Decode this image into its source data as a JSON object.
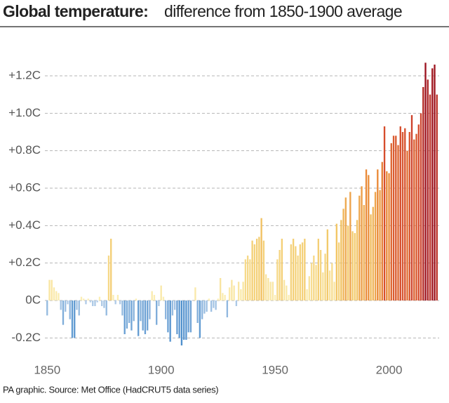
{
  "chart_data": {
    "type": "bar",
    "title": "Global temperature:",
    "subtitle": "difference from 1850-1900 average",
    "source": "PA graphic. Source: Met Office (HadCRUT5 data series)",
    "x": [
      1850,
      1851,
      1852,
      1853,
      1854,
      1855,
      1856,
      1857,
      1858,
      1859,
      1860,
      1861,
      1862,
      1863,
      1864,
      1865,
      1866,
      1867,
      1868,
      1869,
      1870,
      1871,
      1872,
      1873,
      1874,
      1875,
      1876,
      1877,
      1878,
      1879,
      1880,
      1881,
      1882,
      1883,
      1884,
      1885,
      1886,
      1887,
      1888,
      1889,
      1890,
      1891,
      1892,
      1893,
      1894,
      1895,
      1896,
      1897,
      1898,
      1899,
      1900,
      1901,
      1902,
      1903,
      1904,
      1905,
      1906,
      1907,
      1908,
      1909,
      1910,
      1911,
      1912,
      1913,
      1914,
      1915,
      1916,
      1917,
      1918,
      1919,
      1920,
      1921,
      1922,
      1923,
      1924,
      1925,
      1926,
      1927,
      1928,
      1929,
      1930,
      1931,
      1932,
      1933,
      1934,
      1935,
      1936,
      1937,
      1938,
      1939,
      1940,
      1941,
      1942,
      1943,
      1944,
      1945,
      1946,
      1947,
      1948,
      1949,
      1950,
      1951,
      1952,
      1953,
      1954,
      1955,
      1956,
      1957,
      1958,
      1959,
      1960,
      1961,
      1962,
      1963,
      1964,
      1965,
      1966,
      1967,
      1968,
      1969,
      1970,
      1971,
      1972,
      1973,
      1974,
      1975,
      1976,
      1977,
      1978,
      1979,
      1980,
      1981,
      1982,
      1983,
      1984,
      1985,
      1986,
      1987,
      1988,
      1989,
      1990,
      1991,
      1992,
      1993,
      1994,
      1995,
      1996,
      1997,
      1998,
      1999,
      2000,
      2001,
      2002,
      2003,
      2004,
      2005,
      2006,
      2007,
      2008,
      2009,
      2010,
      2011,
      2012,
      2013,
      2014,
      2015,
      2016,
      2017,
      2018,
      2019,
      2020,
      2021
    ],
    "values": [
      -0.08,
      0.11,
      0.11,
      0.07,
      0.05,
      0.04,
      -0.05,
      -0.13,
      -0.06,
      -0.02,
      -0.1,
      -0.2,
      -0.2,
      -0.05,
      -0.08,
      0.02,
      0.01,
      -0.02,
      0.01,
      -0.01,
      -0.03,
      -0.03,
      -0.01,
      0.02,
      -0.03,
      -0.04,
      -0.08,
      0.24,
      0.33,
      0.03,
      -0.02,
      0.03,
      -0.02,
      -0.08,
      -0.18,
      -0.15,
      -0.12,
      -0.16,
      -0.11,
      0.01,
      -0.19,
      -0.11,
      -0.16,
      -0.18,
      -0.16,
      -0.1,
      0.05,
      0.03,
      -0.13,
      -0.03,
      0.08,
      0.02,
      -0.1,
      -0.17,
      -0.22,
      -0.08,
      -0.05,
      -0.18,
      -0.2,
      -0.24,
      -0.21,
      -0.21,
      -0.17,
      -0.17,
      0.0,
      0.07,
      -0.12,
      -0.2,
      -0.1,
      -0.07,
      -0.06,
      0.01,
      -0.06,
      -0.04,
      -0.05,
      0.01,
      0.12,
      0.04,
      0.03,
      -0.09,
      0.07,
      0.11,
      0.08,
      -0.03,
      0.1,
      0.06,
      0.1,
      0.22,
      0.24,
      0.22,
      0.32,
      0.3,
      0.33,
      0.34,
      0.44,
      0.32,
      0.14,
      0.12,
      0.1,
      0.1,
      0.03,
      0.22,
      0.27,
      0.33,
      0.11,
      0.08,
      0.03,
      0.3,
      0.33,
      0.29,
      0.24,
      0.3,
      0.31,
      0.33,
      0.06,
      0.13,
      0.2,
      0.24,
      0.19,
      0.33,
      0.27,
      0.15,
      0.25,
      0.38,
      0.16,
      0.2,
      0.1,
      0.41,
      0.31,
      0.43,
      0.49,
      0.55,
      0.4,
      0.58,
      0.37,
      0.36,
      0.43,
      0.56,
      0.61,
      0.51,
      0.7,
      0.67,
      0.46,
      0.5,
      0.58,
      0.7,
      0.59,
      0.74,
      0.93,
      0.69,
      0.68,
      0.84,
      0.88,
      0.88,
      0.83,
      0.93,
      0.9,
      0.92,
      0.8,
      0.9,
      0.99,
      0.86,
      0.89,
      0.94,
      1.0,
      1.14,
      1.27,
      1.18,
      1.1,
      1.24,
      1.26,
      1.1
    ],
    "color_stops": [
      [
        -0.25,
        "#4a8ccb"
      ],
      [
        0,
        "#b9d1ea"
      ],
      [
        0.01,
        "#fbefb6"
      ],
      [
        0.4,
        "#f2c867"
      ],
      [
        0.7,
        "#ea8a38"
      ],
      [
        0.95,
        "#d4482b"
      ],
      [
        1.27,
        "#9c1320"
      ]
    ],
    "xlim": [
      1849,
      2022
    ],
    "ylim": [
      -0.3,
      1.35
    ],
    "xticks": [
      1850,
      1900,
      1950,
      2000
    ],
    "yticks": [
      {
        "value": -0.2,
        "label": "-0.2C"
      },
      {
        "value": 0,
        "label": "0C"
      },
      {
        "value": 0.2,
        "label": "+0.2C"
      },
      {
        "value": 0.4,
        "label": "+0.4C"
      },
      {
        "value": 0.6,
        "label": "+0.6C"
      },
      {
        "value": 0.8,
        "label": "+0.8C"
      },
      {
        "value": 1.0,
        "label": "+1.0C"
      },
      {
        "value": 1.2,
        "label": "+1.2C"
      }
    ],
    "grid": true
  }
}
